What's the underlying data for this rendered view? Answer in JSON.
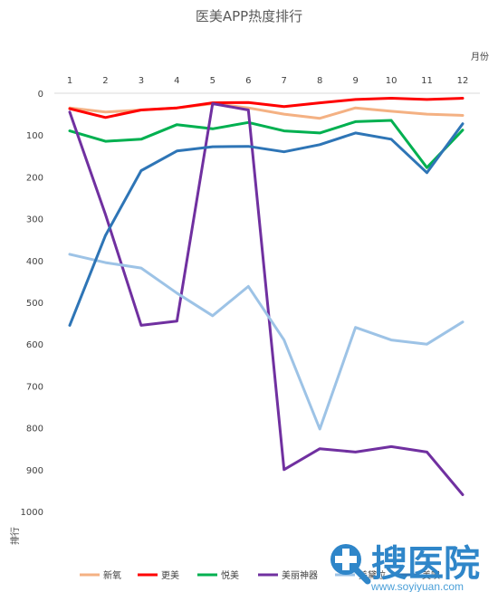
{
  "chart_data": {
    "type": "line",
    "title": "医美APP热度排行",
    "xlabel": "月份",
    "ylabel": "排行",
    "x": [
      1,
      2,
      3,
      4,
      5,
      6,
      7,
      8,
      9,
      10,
      11,
      12
    ],
    "ylim": [
      0,
      1000
    ],
    "y_reversed": true,
    "y_ticks": [
      0,
      100,
      200,
      300,
      400,
      500,
      600,
      700,
      800,
      900,
      1000
    ],
    "x_axis_position": "top",
    "legend_position": "bottom",
    "grid": false,
    "series": [
      {
        "name": "新氧",
        "color": "#f4b183",
        "values": [
          35,
          45,
          40,
          35,
          25,
          35,
          50,
          60,
          35,
          43,
          50,
          53
        ]
      },
      {
        "name": "更美",
        "color": "#ff0000",
        "values": [
          37,
          58,
          40,
          35,
          23,
          22,
          32,
          23,
          15,
          12,
          15,
          12
        ]
      },
      {
        "name": "悦美",
        "color": "#00b050",
        "values": [
          90,
          115,
          110,
          75,
          85,
          70,
          90,
          95,
          68,
          65,
          178,
          88
        ]
      },
      {
        "name": "美丽神器",
        "color": "#7030a0",
        "values": [
          45,
          290,
          555,
          545,
          25,
          40,
          900,
          850,
          858,
          845,
          858,
          960
        ]
      },
      {
        "name": "美黛拉",
        "color": "#9dc3e6",
        "values": [
          385,
          405,
          418,
          478,
          532,
          462,
          590,
          803,
          560,
          590,
          600,
          547
        ]
      },
      {
        "name": "美呗",
        "color": "#2e75b6",
        "values": [
          555,
          340,
          185,
          138,
          128,
          127,
          140,
          123,
          95,
          110,
          190,
          73
        ]
      }
    ]
  },
  "watermark": {
    "logo_text": "搜医院",
    "domain": "www.soyiyuan.com",
    "logo_icon": "search-cross-icon",
    "color": "#2f86c9"
  }
}
